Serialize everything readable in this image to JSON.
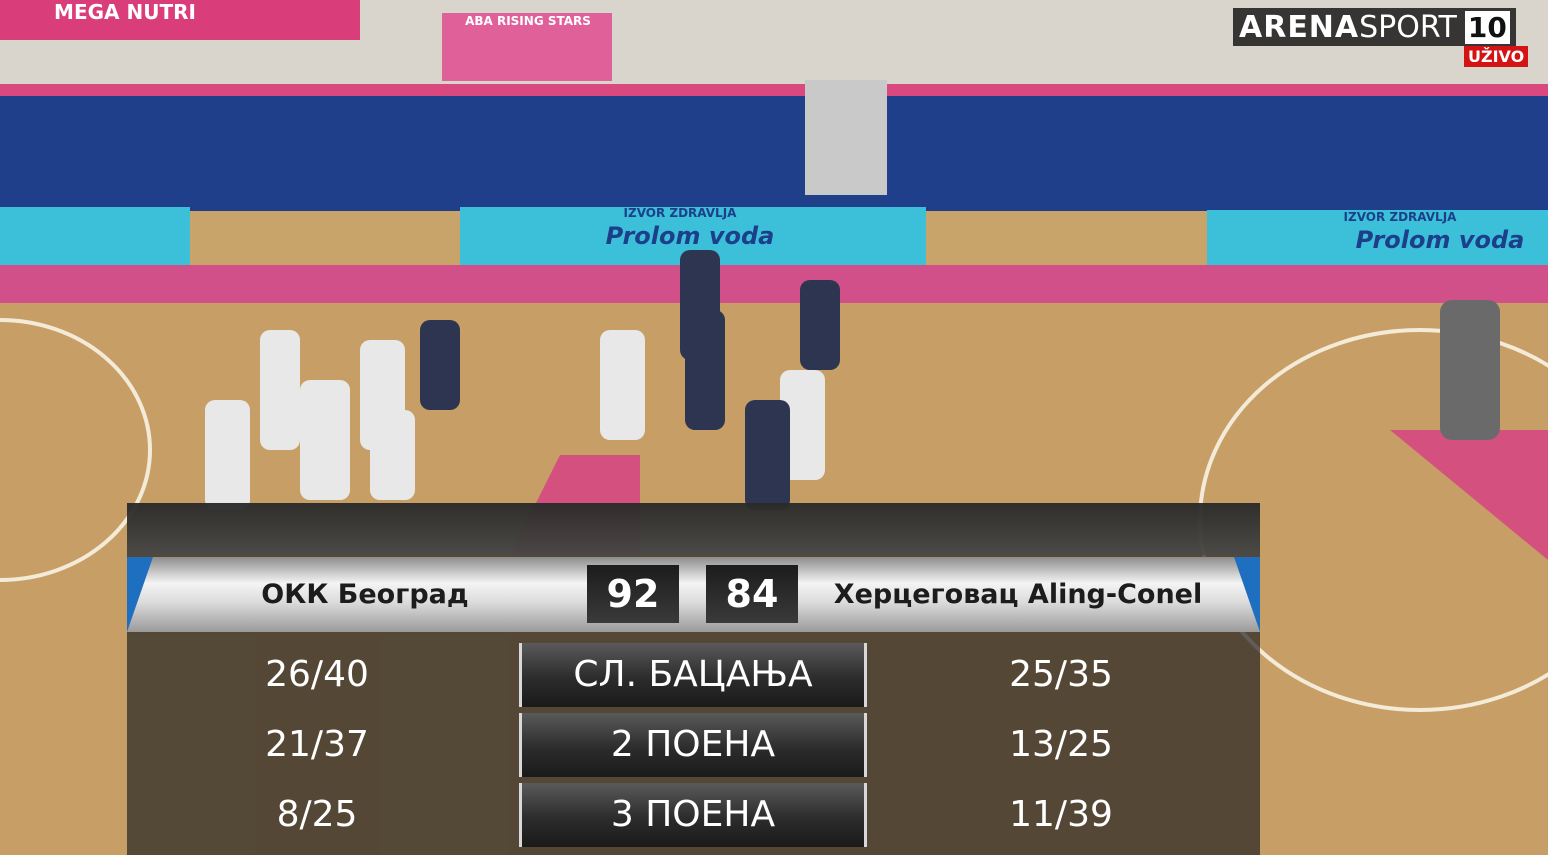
{
  "broadcaster": {
    "brand_bold": "ARENA",
    "brand_light": "SPORT",
    "channel": "10",
    "live": "UŽIVO"
  },
  "venue": {
    "banner": "MEGA NUTRI",
    "poster": "ABA RISING STARS",
    "board_tagline": "IZVOR ZDRAVLJA",
    "board_brand": "Prolom voda"
  },
  "scoreboard": {
    "home": {
      "name": "ОКК Београд",
      "score": 92
    },
    "away": {
      "name": "Херцеговац Aling-Conel",
      "score": 84
    }
  },
  "stats": {
    "rows": [
      {
        "home": "26/40",
        "label": "СЛ. БАЦАЊА",
        "away": "25/35"
      },
      {
        "home": "21/37",
        "label": "2 ПОЕНА",
        "away": "13/25"
      },
      {
        "home": "8/25",
        "label": "3 ПОЕНА",
        "away": "11/39"
      }
    ]
  }
}
